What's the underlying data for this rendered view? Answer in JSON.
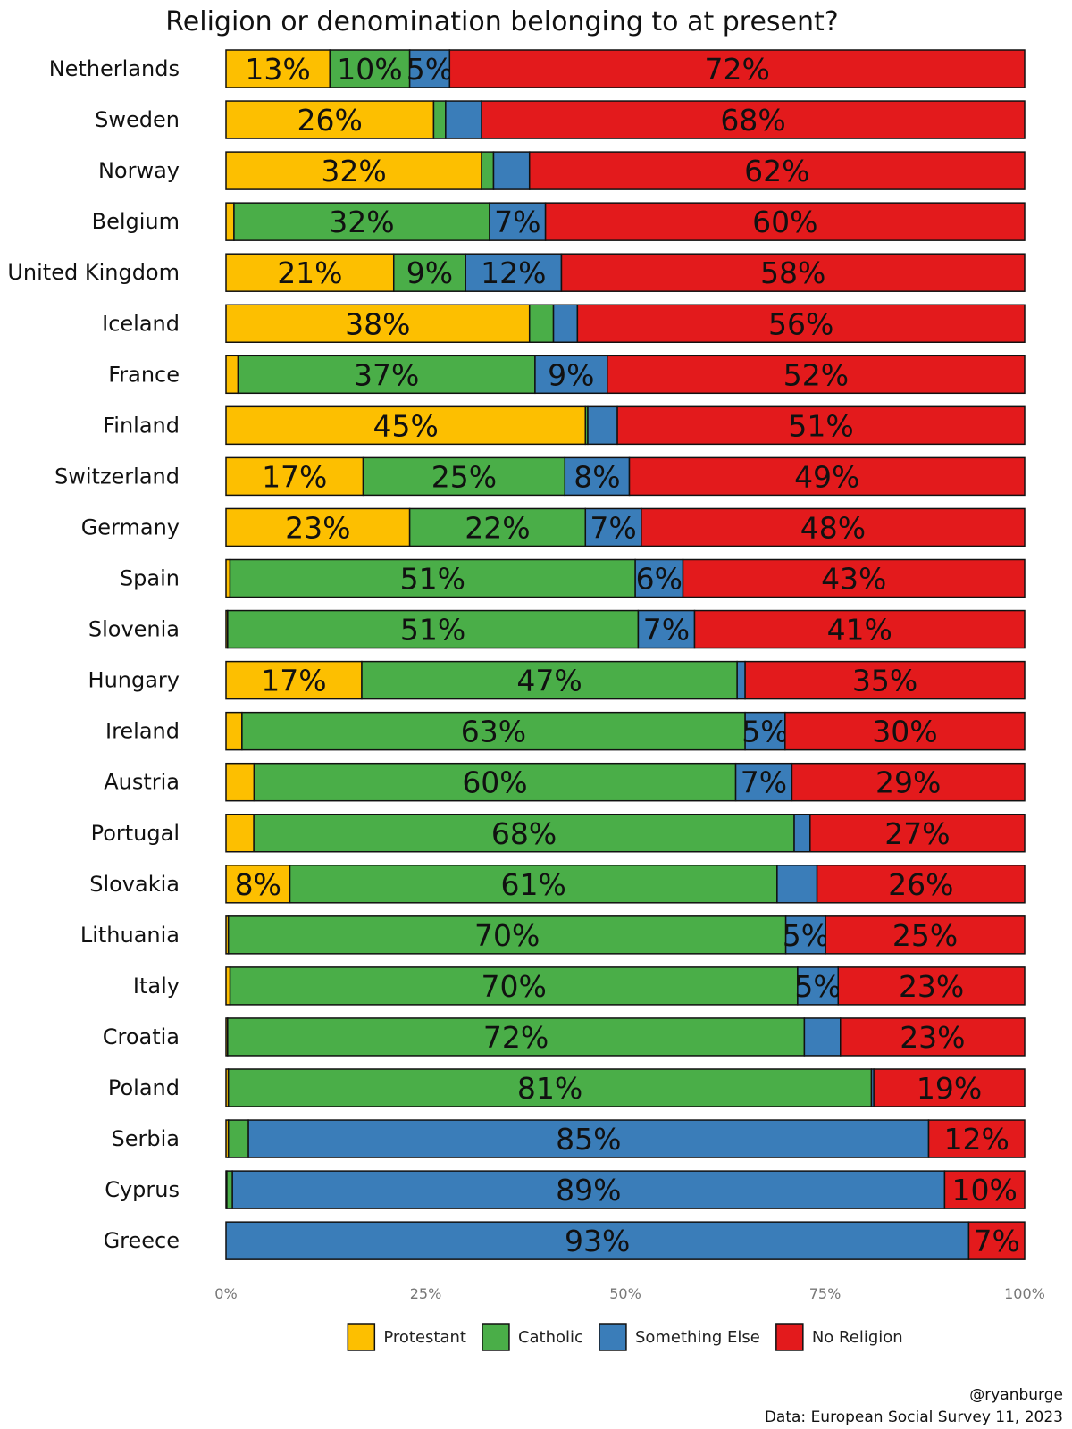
{
  "chart_data": {
    "type": "bar",
    "orientation": "horizontal",
    "stacked": true,
    "title": "Religion or denomination belonging to at present?",
    "xlim": [
      0,
      100
    ],
    "x_ticks": [
      "0%",
      "25%",
      "50%",
      "75%",
      "100%"
    ],
    "legend_position": "bottom",
    "caption": [
      "@ryanburge",
      "Data: European Social Survey 11, 2023"
    ],
    "categories": [
      "Netherlands",
      "Sweden",
      "Norway",
      "Belgium",
      "United Kingdom",
      "Iceland",
      "France",
      "Finland",
      "Switzerland",
      "Germany",
      "Spain",
      "Slovenia",
      "Hungary",
      "Ireland",
      "Austria",
      "Portugal",
      "Slovakia",
      "Lithuania",
      "Italy",
      "Croatia",
      "Poland",
      "Serbia",
      "Cyprus",
      "Greece"
    ],
    "series": [
      {
        "name": "Protestant",
        "color": "#FDBF00",
        "values": [
          13,
          26,
          32,
          1,
          21,
          38,
          1.5,
          45,
          17,
          23,
          0.5,
          0.2,
          17,
          2,
          3.5,
          3.5,
          8,
          0.3,
          0.5,
          0.2,
          0.3,
          0.3,
          0.1,
          0
        ],
        "labels": [
          "13%",
          "26%",
          "32%",
          "",
          "21%",
          "38%",
          "",
          "45%",
          "17%",
          "23%",
          "",
          "",
          "17%",
          "",
          "",
          "",
          "8%",
          "",
          "",
          "",
          "",
          "",
          "",
          ""
        ]
      },
      {
        "name": "Catholic",
        "color": "#4AAE48",
        "values": [
          10,
          1.5,
          1.5,
          32,
          9,
          3,
          37,
          0.3,
          25,
          22,
          51,
          51,
          47,
          63,
          60,
          68,
          61,
          70,
          70,
          72,
          81,
          2.5,
          0.7,
          0
        ],
        "labels": [
          "10%",
          "",
          "",
          "32%",
          "9%",
          "",
          "37%",
          "",
          "25%",
          "22%",
          "51%",
          "51%",
          "47%",
          "63%",
          "60%",
          "68%",
          "61%",
          "70%",
          "70%",
          "72%",
          "81%",
          "",
          "",
          ""
        ]
      },
      {
        "name": "Something Else",
        "color": "#3A7DB9",
        "values": [
          5,
          4.5,
          4.5,
          7,
          12,
          3,
          9,
          3.7,
          8,
          7,
          6,
          7,
          1,
          5,
          7,
          2,
          5,
          5,
          5,
          4.5,
          0.3,
          85,
          89,
          93
        ],
        "labels": [
          "5%",
          "",
          "",
          "7%",
          "12%",
          "",
          "9%",
          "",
          "8%",
          "7%",
          "6%",
          "7%",
          "",
          "5%",
          "7%",
          "",
          "",
          "5%",
          "5%",
          "",
          "",
          "85%",
          "89%",
          "93%"
        ]
      },
      {
        "name": "No Religion",
        "color": "#E31A1C",
        "values": [
          72,
          68,
          62,
          60,
          58,
          56,
          52,
          51,
          49,
          48,
          43,
          41,
          35,
          30,
          29,
          27,
          26,
          25,
          23,
          23,
          19,
          12,
          10,
          7
        ],
        "labels": [
          "72%",
          "68%",
          "62%",
          "60%",
          "58%",
          "56%",
          "52%",
          "51%",
          "49%",
          "48%",
          "43%",
          "41%",
          "35%",
          "30%",
          "29%",
          "27%",
          "26%",
          "25%",
          "23%",
          "23%",
          "19%",
          "12%",
          "10%",
          "7%"
        ]
      }
    ]
  }
}
